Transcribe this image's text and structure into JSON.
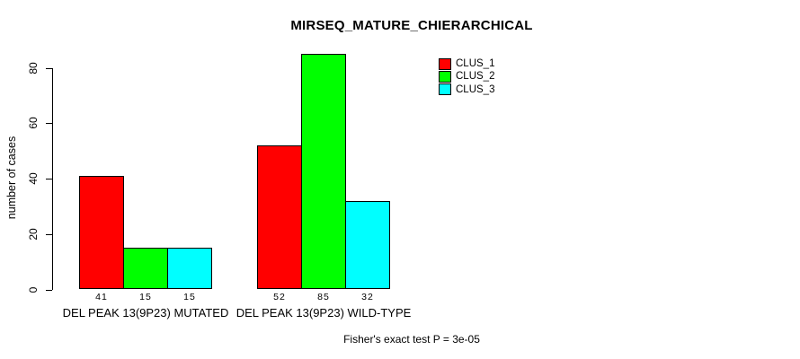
{
  "chart_data": {
    "type": "bar",
    "title": "MIRSEQ_MATURE_CHIERARCHICAL",
    "categories": [
      "DEL PEAK 13(9P23) MUTATED",
      "DEL PEAK 13(9P23) WILD-TYPE"
    ],
    "series": [
      {
        "name": "CLUS_1",
        "color": "#ff0000",
        "values": [
          41,
          52
        ]
      },
      {
        "name": "CLUS_2",
        "color": "#00ff00",
        "values": [
          15,
          85
        ]
      },
      {
        "name": "CLUS_3",
        "color": "#00ffff",
        "values": [
          15,
          32
        ]
      }
    ],
    "bar_value_labels_shown": true,
    "xlabel": "",
    "ylabel": "number of cases",
    "ylim": [
      0,
      85
    ],
    "yticks": [
      0,
      20,
      40,
      60,
      80
    ],
    "grid": false,
    "legend_position": "top-right",
    "annotation": "Fisher's exact test P = 3e-05"
  },
  "colors": {
    "background": "#ffffff",
    "axis": "#000000",
    "text": "#000000"
  }
}
